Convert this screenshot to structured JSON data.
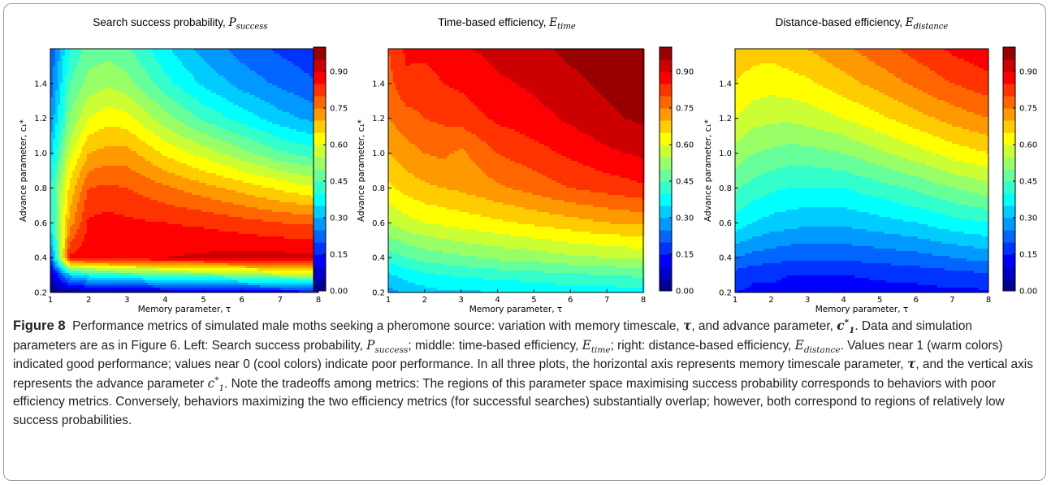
{
  "figure": {
    "label": "Figure 8",
    "caption": {
      "lead": "Performance metrics of simulated male moths seeking a pheromone source: variation with memory timescale,",
      "tau": "τ",
      "t1": ", and advance parameter,",
      "c": "c",
      "c_sub": "1",
      "c_sup": "*",
      "t2": ". Data and simulation parameters are as in Figure 6. Left: Search success probability,",
      "p": "P",
      "p_sub": "success",
      "t3": "; middle: time-based efficiency,",
      "e": "E",
      "et_sub": "time",
      "t4": "; right: distance-based efficiency,",
      "ed_sub": "distance",
      "t5": ". Values near 1 (warm colors) indicated good performance; values near 0 (cool colors) indicate poor performance. In all three plots, the horizontal axis represents memory timescale parameter,",
      "t6": ", and the vertical axis represents the advance parameter",
      "t7": ". Note the tradeoffs among metrics: The regions of this parameter space maximising success probability corresponds to behaviors with poor efficiency metrics. Conversely, behaviors maximizing the two efficiency metrics (for successful searches) substantially overlap; however, both correspond to regions of relatively low success probabilities."
    }
  },
  "chart_data": [
    {
      "type": "heatmap",
      "title_text": "Search success probability,",
      "title_symbol": "P",
      "title_subscript": "success",
      "xlabel": "Memory parameter, τ",
      "ylabel": "Advance parameter, c₁*",
      "x": [
        1,
        1.5,
        2,
        2.5,
        3,
        4,
        5,
        6,
        7,
        8
      ],
      "y": [
        0.2,
        0.3,
        0.4,
        0.6,
        0.8,
        1.0,
        1.2,
        1.4,
        1.6
      ],
      "z": [
        [
          0.0,
          0.02,
          0.04,
          0.05,
          0.06,
          0.07,
          0.09,
          0.1,
          0.11,
          0.13
        ],
        [
          0.05,
          0.32,
          0.38,
          0.4,
          0.42,
          0.46,
          0.47,
          0.5,
          0.54,
          0.56
        ],
        [
          0.2,
          0.86,
          0.88,
          0.89,
          0.9,
          0.9,
          0.91,
          0.92,
          0.92,
          0.91
        ],
        [
          0.38,
          0.72,
          0.86,
          0.87,
          0.86,
          0.85,
          0.84,
          0.82,
          0.8,
          0.79
        ],
        [
          0.4,
          0.66,
          0.8,
          0.81,
          0.8,
          0.76,
          0.72,
          0.68,
          0.64,
          0.6
        ],
        [
          0.33,
          0.58,
          0.7,
          0.72,
          0.72,
          0.64,
          0.58,
          0.52,
          0.46,
          0.42
        ],
        [
          0.26,
          0.5,
          0.6,
          0.63,
          0.62,
          0.52,
          0.44,
          0.38,
          0.32,
          0.28
        ],
        [
          0.22,
          0.45,
          0.52,
          0.54,
          0.52,
          0.42,
          0.34,
          0.28,
          0.24,
          0.2
        ],
        [
          0.2,
          0.4,
          0.47,
          0.48,
          0.46,
          0.36,
          0.28,
          0.23,
          0.19,
          0.16
        ]
      ],
      "xticks": [
        1,
        2,
        3,
        4,
        5,
        6,
        7,
        8
      ],
      "yticks": [
        0.2,
        0.4,
        0.6,
        0.8,
        1.0,
        1.2,
        1.4
      ],
      "xlim": [
        1,
        8
      ],
      "ylim": [
        0.2,
        1.6
      ],
      "colorbar": {
        "ticks": [
          "0.00",
          "0.15",
          "0.30",
          "0.45",
          "0.60",
          "0.75",
          "0.90"
        ],
        "range": [
          0,
          1
        ],
        "levels": 20
      },
      "colormap": "jet"
    },
    {
      "type": "heatmap",
      "title_text": "Time-based efficiency,",
      "title_symbol": "E",
      "title_subscript": "time",
      "xlabel": "Memory parameter, τ",
      "ylabel": "Advance parameter, c₁*",
      "x": [
        1,
        1.5,
        2,
        2.5,
        3,
        4,
        5,
        6,
        7,
        8
      ],
      "y": [
        0.2,
        0.3,
        0.4,
        0.6,
        0.8,
        1.0,
        1.2,
        1.4,
        1.6
      ],
      "z": [
        [
          0.28,
          0.31,
          0.33,
          0.34,
          0.34,
          0.35,
          0.36,
          0.37,
          0.37,
          0.38
        ],
        [
          0.34,
          0.37,
          0.39,
          0.4,
          0.41,
          0.42,
          0.43,
          0.44,
          0.45,
          0.46
        ],
        [
          0.42,
          0.45,
          0.47,
          0.48,
          0.49,
          0.51,
          0.52,
          0.54,
          0.55,
          0.56
        ],
        [
          0.55,
          0.58,
          0.6,
          0.61,
          0.62,
          0.64,
          0.66,
          0.68,
          0.7,
          0.71
        ],
        [
          0.64,
          0.67,
          0.69,
          0.7,
          0.71,
          0.74,
          0.77,
          0.8,
          0.82,
          0.84
        ],
        [
          0.7,
          0.73,
          0.75,
          0.76,
          0.74,
          0.8,
          0.83,
          0.86,
          0.89,
          0.91
        ],
        [
          0.75,
          0.78,
          0.8,
          0.81,
          0.82,
          0.86,
          0.88,
          0.91,
          0.94,
          0.96
        ],
        [
          0.78,
          0.84,
          0.82,
          0.85,
          0.86,
          0.89,
          0.91,
          0.94,
          0.96,
          0.97
        ],
        [
          0.8,
          0.86,
          0.87,
          0.88,
          0.89,
          0.92,
          0.94,
          0.96,
          0.97,
          0.98
        ]
      ],
      "xticks": [
        1,
        2,
        3,
        4,
        5,
        6,
        7,
        8
      ],
      "yticks": [
        0.2,
        0.4,
        0.6,
        0.8,
        1.0,
        1.2,
        1.4
      ],
      "xlim": [
        1,
        8
      ],
      "ylim": [
        0.2,
        1.6
      ],
      "colorbar": {
        "ticks": [
          "0.00",
          "0.15",
          "0.30",
          "0.45",
          "0.60",
          "0.75",
          "0.90"
        ],
        "range": [
          0,
          1
        ],
        "levels": 20
      },
      "colormap": "jet"
    },
    {
      "type": "heatmap",
      "title_text": "Distance-based efficiency,",
      "title_symbol": "E",
      "title_subscript": "distance",
      "xlabel": "Memory parameter, τ",
      "ylabel": "Advance parameter, c₁*",
      "x": [
        1,
        1.5,
        2,
        2.5,
        3,
        4,
        5,
        6,
        7,
        8
      ],
      "y": [
        0.2,
        0.3,
        0.4,
        0.6,
        0.8,
        1.0,
        1.2,
        1.4,
        1.6
      ],
      "z": [
        [
          0.15,
          0.14,
          0.14,
          0.13,
          0.13,
          0.12,
          0.13,
          0.13,
          0.14,
          0.14
        ],
        [
          0.18,
          0.16,
          0.16,
          0.15,
          0.15,
          0.15,
          0.16,
          0.17,
          0.18,
          0.19
        ],
        [
          0.25,
          0.23,
          0.22,
          0.21,
          0.21,
          0.21,
          0.22,
          0.23,
          0.25,
          0.27
        ],
        [
          0.38,
          0.35,
          0.33,
          0.32,
          0.31,
          0.31,
          0.33,
          0.35,
          0.38,
          0.4
        ],
        [
          0.46,
          0.43,
          0.41,
          0.4,
          0.4,
          0.4,
          0.43,
          0.46,
          0.5,
          0.53
        ],
        [
          0.53,
          0.5,
          0.49,
          0.48,
          0.48,
          0.5,
          0.54,
          0.58,
          0.62,
          0.65
        ],
        [
          0.6,
          0.57,
          0.56,
          0.56,
          0.57,
          0.6,
          0.64,
          0.68,
          0.72,
          0.75
        ],
        [
          0.65,
          0.63,
          0.62,
          0.63,
          0.64,
          0.68,
          0.72,
          0.76,
          0.8,
          0.83
        ],
        [
          0.68,
          0.67,
          0.67,
          0.68,
          0.7,
          0.74,
          0.78,
          0.82,
          0.86,
          0.89
        ]
      ],
      "xticks": [
        1,
        2,
        3,
        4,
        5,
        6,
        7,
        8
      ],
      "yticks": [
        0.2,
        0.4,
        0.6,
        0.8,
        1.0,
        1.2,
        1.4
      ],
      "xlim": [
        1,
        8
      ],
      "ylim": [
        0.2,
        1.6
      ],
      "colorbar": {
        "ticks": [
          "0.00",
          "0.15",
          "0.30",
          "0.45",
          "0.60",
          "0.75",
          "0.90"
        ],
        "range": [
          0,
          1
        ],
        "levels": 20
      },
      "colormap": "jet"
    }
  ]
}
